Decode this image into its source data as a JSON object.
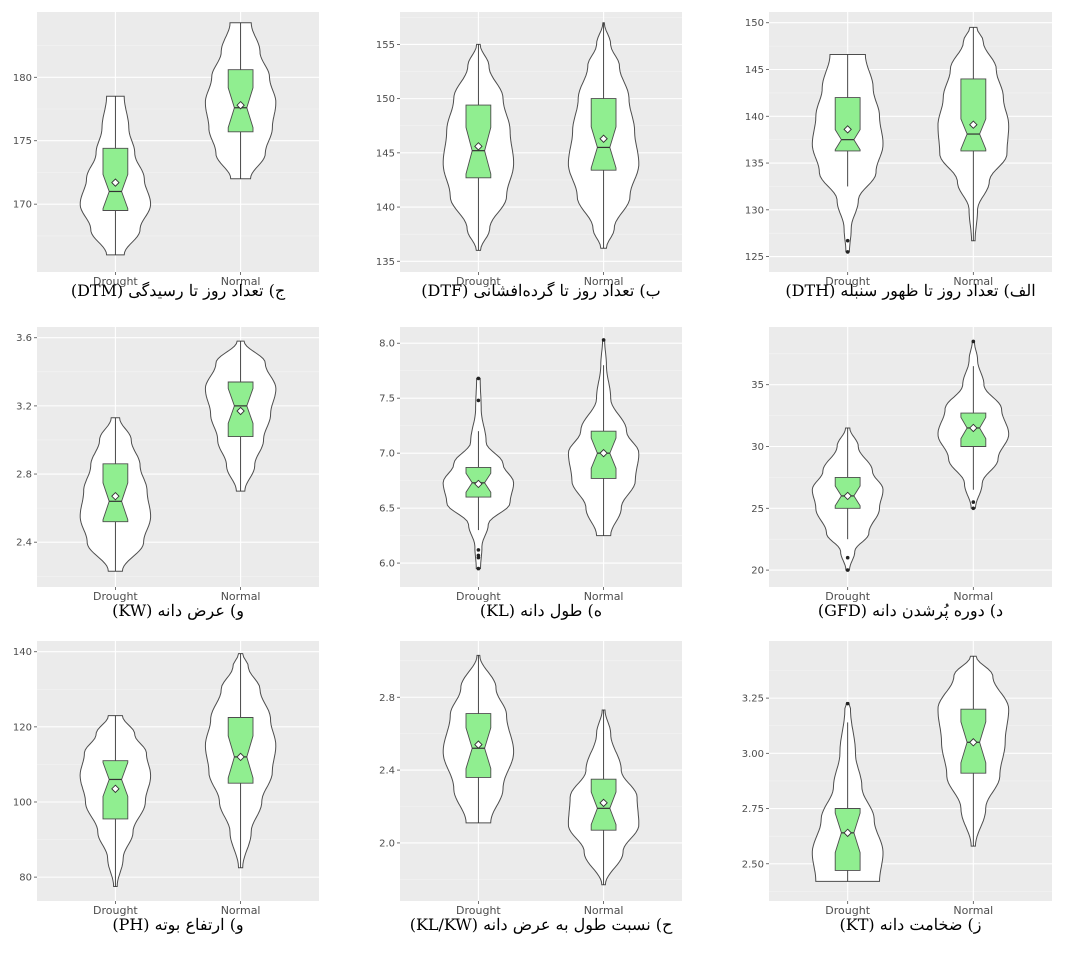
{
  "colors": {
    "panel_bg": "#ebebeb",
    "grid_major": "#ffffff",
    "grid_minor": "#f4f4f4",
    "violin_fill": "#ffffff",
    "violin_stroke": "#4d4d4d",
    "box_fill": "#90ee90",
    "mean_marker": "#ffffff"
  },
  "chart_data": [
    {
      "type": "violin",
      "caption": "ج) تعداد روز تا رسیدگی (DTM)",
      "categories": [
        "Drought",
        "Normal"
      ],
      "ylim": [
        165.5,
        184.3
      ],
      "yticks": [
        170,
        175,
        180
      ],
      "ytick_labels": [
        "170",
        "175",
        "180"
      ],
      "series": [
        {
          "min": 166,
          "q1": 169.5,
          "median": 171,
          "q3": 174.4,
          "max": 178.5,
          "mean": 171.7,
          "whisker_low": 166,
          "whisker_high": 178.5,
          "outliers": [],
          "density": [
            [
              166,
              0.25
            ],
            [
              168,
              0.7
            ],
            [
              170,
              1.0
            ],
            [
              172,
              0.82
            ],
            [
              174,
              0.55
            ],
            [
              176,
              0.38
            ],
            [
              178.5,
              0.25
            ]
          ]
        },
        {
          "min": 172,
          "q1": 175.7,
          "median": 177.6,
          "q3": 180.6,
          "max": 184.3,
          "mean": 177.8,
          "whisker_low": 172,
          "whisker_high": 184.3,
          "outliers": [],
          "density": [
            [
              172,
              0.28
            ],
            [
              174,
              0.7
            ],
            [
              176,
              0.9
            ],
            [
              178,
              1.0
            ],
            [
              180,
              0.82
            ],
            [
              182,
              0.55
            ],
            [
              184.3,
              0.3
            ]
          ]
        }
      ]
    },
    {
      "type": "violin",
      "caption": "ب) تعداد روز تا گرده‌افشانی (DTF)",
      "categories": [
        "Drought",
        "Normal"
      ],
      "ylim": [
        135,
        157
      ],
      "yticks": [
        135,
        140,
        145,
        150,
        155
      ],
      "ytick_labels": [
        "135",
        "140",
        "145",
        "150",
        "155"
      ],
      "series": [
        {
          "min": 136,
          "q1": 142.7,
          "median": 145.2,
          "q3": 149.4,
          "max": 155,
          "mean": 145.6,
          "whisker_low": 136,
          "whisker_high": 155,
          "outliers": [],
          "density": [
            [
              136,
              0.06
            ],
            [
              138,
              0.32
            ],
            [
              141,
              0.8
            ],
            [
              144,
              1.0
            ],
            [
              147,
              0.9
            ],
            [
              150,
              0.7
            ],
            [
              153,
              0.3
            ],
            [
              155,
              0.05
            ]
          ]
        },
        {
          "min": 136.2,
          "q1": 143.4,
          "median": 145.5,
          "q3": 150,
          "max": 157,
          "mean": 146.3,
          "whisker_low": 136.2,
          "whisker_high": 157,
          "outliers": [],
          "density": [
            [
              136.2,
              0.08
            ],
            [
              138,
              0.3
            ],
            [
              141,
              0.75
            ],
            [
              144,
              1.0
            ],
            [
              147,
              0.88
            ],
            [
              150,
              0.72
            ],
            [
              153,
              0.45
            ],
            [
              155,
              0.2
            ],
            [
              157,
              0.02
            ]
          ]
        }
      ]
    },
    {
      "type": "violin",
      "caption": "الف) تعداد روز تا ظهور سنبله (DTH)",
      "categories": [
        "Drought",
        "Normal"
      ],
      "ylim": [
        124.5,
        150
      ],
      "yticks": [
        125,
        130,
        135,
        140,
        145,
        150
      ],
      "ytick_labels": [
        "125",
        "130",
        "135",
        "140",
        "145",
        "150"
      ],
      "series": [
        {
          "min": 132.5,
          "q1": 136.3,
          "median": 137.5,
          "q3": 142,
          "max": 146.6,
          "mean": 138.6,
          "whisker_low": 132.5,
          "whisker_high": 146.6,
          "outliers": [
            125.5,
            126.7
          ],
          "density": [
            [
              125.5,
              0.05
            ],
            [
              128,
              0.1
            ],
            [
              131,
              0.3
            ],
            [
              134,
              0.8
            ],
            [
              137,
              1.0
            ],
            [
              140,
              0.9
            ],
            [
              143,
              0.72
            ],
            [
              146.6,
              0.5
            ]
          ]
        },
        {
          "min": 126.7,
          "q1": 136.3,
          "median": 138.1,
          "q3": 144,
          "max": 149.5,
          "mean": 139.1,
          "whisker_low": 126.7,
          "whisker_high": 149.5,
          "outliers": [],
          "density": [
            [
              126.7,
              0.05
            ],
            [
              130,
              0.12
            ],
            [
              133,
              0.45
            ],
            [
              136,
              0.95
            ],
            [
              139,
              1.0
            ],
            [
              142,
              0.85
            ],
            [
              145,
              0.65
            ],
            [
              148,
              0.28
            ],
            [
              149.5,
              0.1
            ]
          ]
        }
      ]
    },
    {
      "type": "violin",
      "caption": "و) عرض دانه (KW)",
      "categories": [
        "Drought",
        "Normal"
      ],
      "ylim": [
        2.2,
        3.6
      ],
      "yticks": [
        2.4,
        2.8,
        3.2,
        3.6
      ],
      "ytick_labels": [
        "2.4",
        "2.8",
        "3.2",
        "3.6"
      ],
      "series": [
        {
          "min": 2.23,
          "q1": 2.52,
          "median": 2.64,
          "q3": 2.86,
          "max": 3.13,
          "mean": 2.67,
          "whisker_low": 2.23,
          "whisker_high": 3.13,
          "outliers": [],
          "density": [
            [
              2.23,
              0.2
            ],
            [
              2.4,
              0.8
            ],
            [
              2.55,
              1.0
            ],
            [
              2.7,
              0.9
            ],
            [
              2.85,
              0.7
            ],
            [
              3.0,
              0.45
            ],
            [
              3.13,
              0.12
            ]
          ]
        },
        {
          "min": 2.7,
          "q1": 3.02,
          "median": 3.2,
          "q3": 3.34,
          "max": 3.58,
          "mean": 3.17,
          "whisker_low": 2.7,
          "whisker_high": 3.58,
          "outliers": [],
          "density": [
            [
              2.7,
              0.12
            ],
            [
              2.85,
              0.4
            ],
            [
              3.0,
              0.65
            ],
            [
              3.15,
              0.85
            ],
            [
              3.3,
              1.0
            ],
            [
              3.45,
              0.7
            ],
            [
              3.58,
              0.1
            ]
          ]
        }
      ]
    },
    {
      "type": "violin",
      "caption": "ه) طول دانه (KL)",
      "categories": [
        "Drought",
        "Normal"
      ],
      "ylim": [
        5.88,
        8.05
      ],
      "yticks": [
        6.0,
        6.5,
        7.0,
        7.5,
        8.0
      ],
      "ytick_labels": [
        "6.0",
        "6.5",
        "7.0",
        "7.5",
        "8.0"
      ],
      "series": [
        {
          "min": 6.3,
          "q1": 6.6,
          "median": 6.73,
          "q3": 6.87,
          "max": 7.2,
          "mean": 6.72,
          "whisker_low": 6.3,
          "whisker_high": 7.2,
          "outliers": [
            5.95,
            6.05,
            6.07,
            6.12,
            7.48,
            7.68
          ],
          "density": [
            [
              5.95,
              0.06
            ],
            [
              6.15,
              0.1
            ],
            [
              6.35,
              0.28
            ],
            [
              6.55,
              0.9
            ],
            [
              6.73,
              1.0
            ],
            [
              6.9,
              0.7
            ],
            [
              7.1,
              0.22
            ],
            [
              7.4,
              0.08
            ],
            [
              7.68,
              0.05
            ]
          ]
        },
        {
          "min": 6.25,
          "q1": 6.77,
          "median": 7.0,
          "q3": 7.2,
          "max": 7.8,
          "mean": 7.0,
          "whisker_low": 6.25,
          "whisker_high": 7.8,
          "outliers": [
            8.03
          ],
          "density": [
            [
              6.25,
              0.2
            ],
            [
              6.5,
              0.5
            ],
            [
              6.75,
              0.9
            ],
            [
              7.0,
              1.0
            ],
            [
              7.2,
              0.65
            ],
            [
              7.5,
              0.2
            ],
            [
              7.8,
              0.08
            ],
            [
              8.03,
              0.03
            ]
          ]
        }
      ]
    },
    {
      "type": "violin",
      "caption": "د) دوره پُرشدن دانه (GFD)",
      "categories": [
        "Drought",
        "Normal"
      ],
      "ylim": [
        19.5,
        38.8
      ],
      "yticks": [
        20,
        25,
        30,
        35
      ],
      "ytick_labels": [
        "20",
        "25",
        "30",
        "35"
      ],
      "series": [
        {
          "min": 22.5,
          "q1": 25,
          "median": 26,
          "q3": 27.5,
          "max": 31.5,
          "mean": 26,
          "whisker_low": 22.5,
          "whisker_high": 31.5,
          "outliers": [
            20,
            21
          ],
          "density": [
            [
              20,
              0.05
            ],
            [
              21.5,
              0.2
            ],
            [
              23,
              0.6
            ],
            [
              25,
              0.9
            ],
            [
              26.5,
              1.0
            ],
            [
              28,
              0.7
            ],
            [
              30,
              0.3
            ],
            [
              31.5,
              0.06
            ]
          ]
        },
        {
          "min": 26.5,
          "q1": 30,
          "median": 31.5,
          "q3": 32.7,
          "max": 36.5,
          "mean": 31.5,
          "whisker_low": 26.5,
          "whisker_high": 36.5,
          "outliers": [
            25,
            25.5,
            38.5
          ],
          "density": [
            [
              25,
              0.06
            ],
            [
              27,
              0.25
            ],
            [
              29,
              0.7
            ],
            [
              31,
              1.0
            ],
            [
              33,
              0.8
            ],
            [
              35,
              0.3
            ],
            [
              37,
              0.12
            ],
            [
              38.5,
              0.03
            ]
          ]
        }
      ]
    },
    {
      "type": "violin",
      "caption": "و) ارتفاع بوته (PH)",
      "categories": [
        "Drought",
        "Normal"
      ],
      "ylim": [
        76.5,
        140
      ],
      "yticks": [
        80,
        100,
        120,
        140
      ],
      "ytick_labels": [
        "80",
        "100",
        "120",
        "140"
      ],
      "series": [
        {
          "min": 77.5,
          "q1": 95.5,
          "median": 106,
          "q3": 111,
          "max": 123,
          "mean": 103.5,
          "whisker_low": 77.5,
          "whisker_high": 123,
          "outliers": [],
          "density": [
            [
              77.5,
              0.05
            ],
            [
              85,
              0.22
            ],
            [
              92,
              0.5
            ],
            [
              100,
              0.85
            ],
            [
              107,
              1.0
            ],
            [
              113,
              0.88
            ],
            [
              118,
              0.55
            ],
            [
              123,
              0.2
            ]
          ]
        },
        {
          "min": 82.5,
          "q1": 105,
          "median": 112,
          "q3": 122.5,
          "max": 139.5,
          "mean": 112,
          "whisker_low": 82.5,
          "whisker_high": 139.5,
          "outliers": [],
          "density": [
            [
              82.5,
              0.06
            ],
            [
              92,
              0.3
            ],
            [
              100,
              0.6
            ],
            [
              108,
              0.9
            ],
            [
              115,
              1.0
            ],
            [
              122,
              0.85
            ],
            [
              130,
              0.55
            ],
            [
              136,
              0.22
            ],
            [
              139.5,
              0.06
            ]
          ]
        }
      ]
    },
    {
      "type": "violin",
      "caption": "ح) نسبت طول به عرض دانه (KL/KW)",
      "categories": [
        "Drought",
        "Normal"
      ],
      "ylim": [
        1.74,
        3.05
      ],
      "yticks": [
        2.0,
        2.4,
        2.8
      ],
      "ytick_labels": [
        "2.0",
        "2.4",
        "2.8"
      ],
      "series": [
        {
          "min": 2.11,
          "q1": 2.36,
          "median": 2.52,
          "q3": 2.71,
          "max": 3.03,
          "mean": 2.54,
          "whisker_low": 2.11,
          "whisker_high": 3.03,
          "outliers": [],
          "density": [
            [
              2.11,
              0.35
            ],
            [
              2.3,
              0.7
            ],
            [
              2.5,
              1.0
            ],
            [
              2.7,
              0.8
            ],
            [
              2.85,
              0.5
            ],
            [
              3.03,
              0.04
            ]
          ]
        },
        {
          "min": 1.77,
          "q1": 2.07,
          "median": 2.19,
          "q3": 2.35,
          "max": 2.73,
          "mean": 2.22,
          "whisker_low": 1.77,
          "whisker_high": 2.73,
          "outliers": [],
          "density": [
            [
              1.77,
              0.05
            ],
            [
              1.95,
              0.55
            ],
            [
              2.1,
              1.0
            ],
            [
              2.25,
              0.95
            ],
            [
              2.4,
              0.5
            ],
            [
              2.6,
              0.2
            ],
            [
              2.73,
              0.04
            ]
          ]
        }
      ]
    },
    {
      "type": "violin",
      "caption": "ز) ضخامت دانه (KT)",
      "categories": [
        "Drought",
        "Normal"
      ],
      "ylim": [
        2.38,
        3.46
      ],
      "yticks": [
        2.5,
        2.75,
        3.0,
        3.25
      ],
      "ytick_labels": [
        "2.50",
        "2.75",
        "3.00",
        "3.25"
      ],
      "series": [
        {
          "min": 2.42,
          "q1": 2.47,
          "median": 2.64,
          "q3": 2.75,
          "max": 3.14,
          "mean": 2.64,
          "whisker_low": 2.42,
          "whisker_high": 3.14,
          "outliers": [
            3.225
          ],
          "density": [
            [
              2.42,
              0.9
            ],
            [
              2.55,
              1.0
            ],
            [
              2.7,
              0.75
            ],
            [
              2.85,
              0.4
            ],
            [
              3.0,
              0.22
            ],
            [
              3.2,
              0.08
            ],
            [
              3.23,
              0.03
            ]
          ]
        },
        {
          "min": 2.58,
          "q1": 2.91,
          "median": 3.05,
          "q3": 3.2,
          "max": 3.44,
          "mean": 3.05,
          "whisker_low": 2.58,
          "whisker_high": 3.44,
          "outliers": [],
          "density": [
            [
              2.58,
              0.06
            ],
            [
              2.75,
              0.35
            ],
            [
              2.9,
              0.75
            ],
            [
              3.05,
              0.9
            ],
            [
              3.2,
              1.0
            ],
            [
              3.35,
              0.55
            ],
            [
              3.44,
              0.08
            ]
          ]
        }
      ]
    }
  ]
}
